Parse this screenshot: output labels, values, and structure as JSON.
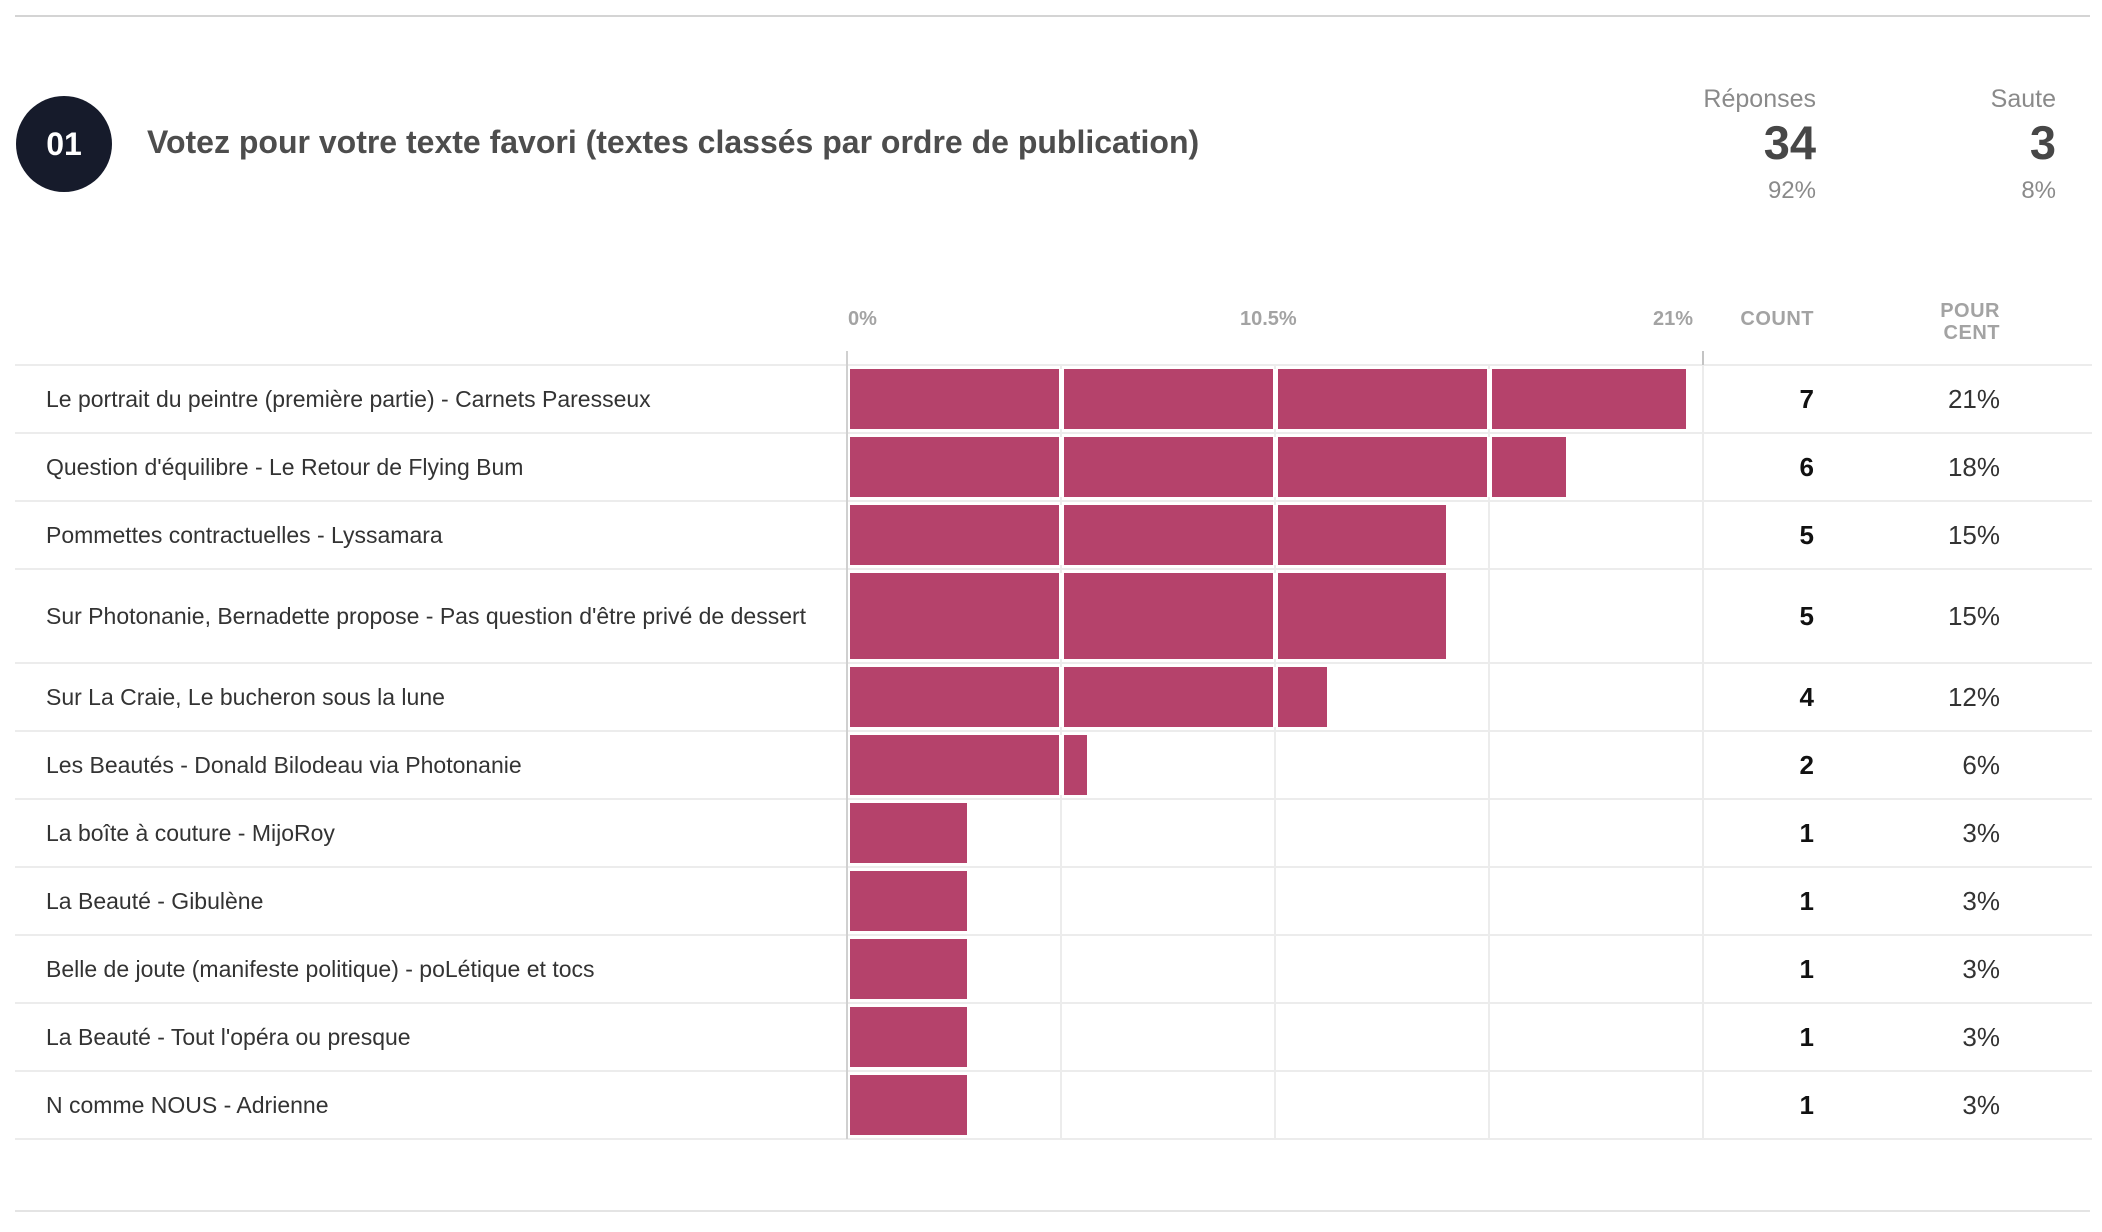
{
  "question": {
    "number": "01",
    "title": "Votez pour votre texte favori (textes classés par ordre de publication)"
  },
  "stats": {
    "responses": {
      "label": "Réponses",
      "value": "34",
      "percent": "92%"
    },
    "skipped": {
      "label": "Saute",
      "value": "3",
      "percent": "8%"
    }
  },
  "table": {
    "columns": {
      "count": "COUNT",
      "percent_line1": "POUR",
      "percent_line2": "CENT"
    },
    "axis_ticks": [
      "0%",
      "10.5%",
      "21%"
    ]
  },
  "colors": {
    "bar": "#b5426b",
    "badge": "#161b2b"
  },
  "chart_data": {
    "type": "bar",
    "orientation": "horizontal",
    "title": "Votez pour votre texte favori (textes classés par ordre de publication)",
    "xlabel": "",
    "ylabel": "",
    "xlim": [
      0,
      21
    ],
    "x_ticks": [
      "0%",
      "10.5%",
      "21%"
    ],
    "grid": true,
    "categories": [
      "Le portrait du peintre (première partie) - Carnets Paresseux",
      "Question d'équilibre - Le Retour de Flying Bum",
      "Pommettes contractuelles - Lyssamara",
      "Sur Photonanie, Bernadette propose - Pas question d'être privé de dessert",
      "Sur La Craie, Le bucheron sous la lune",
      "Les Beautés - Donald Bilodeau via Photonanie",
      "La boîte à couture - MijoRoy",
      "La Beauté - Gibulène",
      "Belle de joute (manifeste politique) - poLétique et tocs",
      "La Beauté - Tout l'opéra ou presque",
      "N comme NOUS - Adrienne"
    ],
    "series": [
      {
        "name": "Count",
        "values": [
          7,
          6,
          5,
          5,
          4,
          2,
          1,
          1,
          1,
          1,
          1
        ]
      },
      {
        "name": "Pour cent",
        "values": [
          21,
          18,
          15,
          15,
          12,
          6,
          3,
          3,
          3,
          3,
          3
        ]
      }
    ],
    "rows": [
      {
        "label": "Le portrait du peintre (première partie) - Carnets Paresseux",
        "count": "7",
        "percent": "21%"
      },
      {
        "label": "Question d'équilibre - Le Retour de Flying Bum",
        "count": "6",
        "percent": "18%"
      },
      {
        "label": "Pommettes contractuelles - Lyssamara",
        "count": "5",
        "percent": "15%"
      },
      {
        "label": "Sur Photonanie, Bernadette propose - Pas question d'être privé de dessert",
        "count": "5",
        "percent": "15%"
      },
      {
        "label": "Sur La Craie, Le bucheron sous la lune",
        "count": "4",
        "percent": "12%"
      },
      {
        "label": "Les Beautés - Donald Bilodeau via Photonanie",
        "count": "2",
        "percent": "6%"
      },
      {
        "label": "La boîte à couture - MijoRoy",
        "count": "1",
        "percent": "3%"
      },
      {
        "label": "La Beauté - Gibulène",
        "count": "1",
        "percent": "3%"
      },
      {
        "label": "Belle de joute (manifeste politique) - poLétique et tocs",
        "count": "1",
        "percent": "3%"
      },
      {
        "label": "La Beauté - Tout l'opéra ou presque",
        "count": "1",
        "percent": "3%"
      },
      {
        "label": "N comme NOUS - Adrienne",
        "count": "1",
        "percent": "3%"
      }
    ]
  }
}
